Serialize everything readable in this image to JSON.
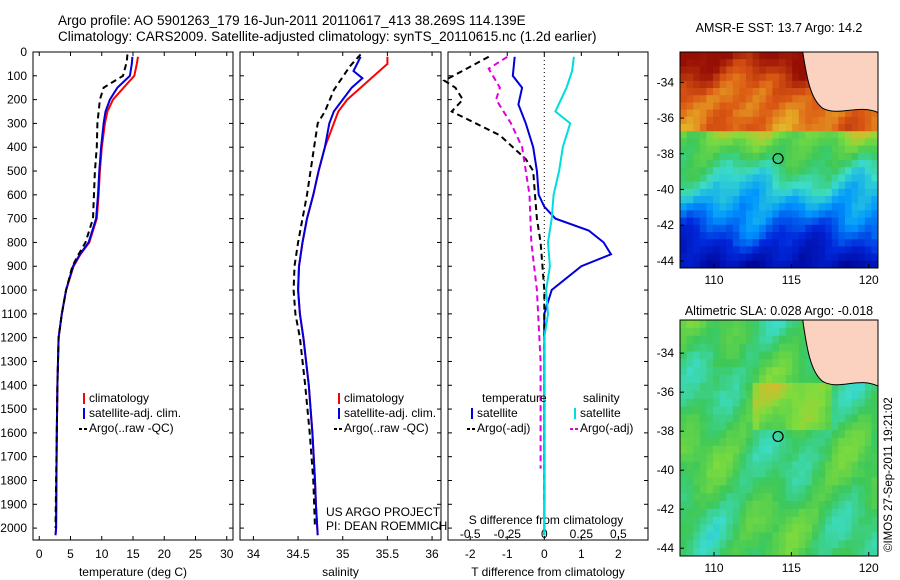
{
  "title": {
    "line1": "Argo profile: AO 5901263_179 16-Jun-2011 20110617_413 38.269S 114.139E",
    "line2": "Climatology: CARS2009. Satellite-adjusted climatology: synTS_20110615.nc (1.2d earlier)"
  },
  "colors": {
    "climatology": "#ff0000",
    "satellite": "#0000dd",
    "argo": "#000000",
    "sat_salinity": "#00dddd",
    "argo_salinity_adj": "#dd00dd"
  },
  "chart_data": [
    {
      "type": "line",
      "panel": "temperature",
      "xlabel": "temperature (deg C)",
      "ylabel": "",
      "xlim": [
        -1,
        31
      ],
      "ylim": [
        2050,
        0
      ],
      "xticks": [
        "0",
        "5",
        "10",
        "15",
        "20",
        "25",
        "30"
      ],
      "yticks": [
        "0",
        "100",
        "200",
        "300",
        "400",
        "500",
        "600",
        "700",
        "800",
        "900",
        "1000",
        "1100",
        "1200",
        "1300",
        "1400",
        "1500",
        "1600",
        "1700",
        "1800",
        "1900",
        "2000"
      ],
      "legend": [
        "climatology",
        "satellite-adj. clim.",
        "Argo(..raw -QC)"
      ],
      "series": [
        {
          "name": "climatology",
          "color": "#ff0000",
          "dash": "",
          "x": [
            15.8,
            15.6,
            15.2,
            13.5,
            11.8,
            10.9,
            10.5,
            10.0,
            9.7,
            9.5,
            9.2,
            8.0,
            6.6,
            5.5,
            4.3,
            3.6,
            3.1,
            2.9,
            2.8,
            2.75,
            2.7,
            2.6
          ],
          "y": [
            20,
            50,
            100,
            150,
            200,
            250,
            300,
            400,
            500,
            600,
            700,
            800,
            850,
            900,
            1000,
            1100,
            1200,
            1400,
            1600,
            1800,
            2000,
            2030
          ]
        },
        {
          "name": "satellite-adj. clim.",
          "color": "#0000dd",
          "dash": "",
          "x": [
            14.9,
            14.8,
            14.5,
            12.5,
            11.3,
            10.6,
            10.3,
            9.9,
            9.6,
            9.4,
            9.1,
            7.9,
            6.5,
            5.4,
            4.3,
            3.6,
            3.1,
            2.9,
            2.8,
            2.75,
            2.7,
            2.6
          ],
          "y": [
            20,
            50,
            100,
            150,
            200,
            250,
            300,
            400,
            500,
            600,
            700,
            800,
            850,
            900,
            1000,
            1100,
            1200,
            1400,
            1600,
            1800,
            2000,
            2030
          ]
        },
        {
          "name": "Argo(..raw -QC)",
          "color": "#000000",
          "dash": "6,4",
          "x": [
            14.1,
            14.0,
            13.4,
            10.3,
            9.7,
            9.3,
            9.2,
            8.9,
            8.6,
            7.4,
            6.3,
            5.3,
            4.3,
            3.6,
            3.1,
            2.9,
            2.8,
            2.7,
            2.6
          ],
          "y": [
            10,
            40,
            100,
            150,
            200,
            300,
            400,
            500,
            700,
            800,
            850,
            900,
            1000,
            1100,
            1200,
            1400,
            1600,
            1800,
            2000
          ]
        }
      ]
    },
    {
      "type": "line",
      "panel": "salinity",
      "xlabel": "salinity",
      "xlim": [
        33.85,
        36.1
      ],
      "ylim": [
        2050,
        0
      ],
      "xticks": [
        "34",
        "34.5",
        "35",
        "35.5",
        "36"
      ],
      "legend": [
        "climatology",
        "satellite-adj. clim.",
        "Argo(..raw -QC)"
      ],
      "annotations": [
        "US ARGO PROJECT",
        "PI: DEAN ROEMMICH"
      ],
      "series": [
        {
          "name": "climatology",
          "color": "#ff0000",
          "dash": "",
          "x": [
            35.5,
            35.5,
            35.35,
            35.2,
            35.05,
            34.95,
            34.9,
            34.8,
            34.73,
            34.67,
            34.6,
            34.55,
            34.51,
            34.5,
            34.52,
            34.56,
            34.62,
            34.66,
            34.69,
            34.7,
            34.72
          ],
          "y": [
            20,
            50,
            100,
            150,
            200,
            250,
            300,
            400,
            500,
            600,
            700,
            800,
            900,
            1000,
            1100,
            1200,
            1400,
            1600,
            1800,
            1900,
            2030
          ]
        },
        {
          "name": "satellite-adj. clim.",
          "color": "#0000dd",
          "dash": "",
          "x": [
            35.2,
            35.12,
            35.22,
            35.1,
            35.0,
            34.9,
            34.85,
            34.8,
            34.73,
            34.67,
            34.6,
            34.55,
            34.51,
            34.5,
            34.52,
            34.56,
            34.62,
            34.66,
            34.69,
            34.7,
            34.72
          ],
          "y": [
            20,
            80,
            110,
            150,
            200,
            250,
            300,
            400,
            500,
            600,
            700,
            800,
            900,
            1000,
            1100,
            1200,
            1400,
            1600,
            1800,
            1900,
            2030
          ]
        },
        {
          "name": "Argo(..raw -QC)",
          "color": "#000000",
          "dash": "6,4",
          "x": [
            35.2,
            35.08,
            34.9,
            34.8,
            34.72,
            34.68,
            34.6,
            34.55,
            34.5,
            34.46,
            34.45,
            34.47,
            34.52,
            34.58,
            34.63,
            34.67,
            34.69
          ],
          "y": [
            10,
            60,
            160,
            250,
            300,
            400,
            600,
            700,
            800,
            900,
            1000,
            1100,
            1200,
            1400,
            1600,
            1800,
            2000
          ]
        }
      ]
    },
    {
      "type": "line",
      "panel": "difference",
      "xlabel": "T difference from climatology",
      "xlabel2": "S difference from climatology",
      "xlim": [
        -2.6,
        2.8
      ],
      "ylim": [
        2050,
        0
      ],
      "xticks": [
        "-2",
        "-1",
        "0",
        "1",
        "2"
      ],
      "xticks2": [
        "-0.5",
        "-0.25",
        "0",
        "0.25",
        "0.5"
      ],
      "legend": {
        "temperature": [
          "temperature",
          "satellite",
          "Argo(-adj)"
        ],
        "salinity": [
          "salinity",
          "satellite",
          "Argo(-adj)"
        ]
      },
      "series": [
        {
          "name": "satellite",
          "color": "#0000dd",
          "dash": "",
          "x": [
            -0.8,
            -0.85,
            -0.6,
            -0.7,
            -0.5,
            -0.3,
            -0.2,
            -0.15,
            0,
            0.3,
            1.2,
            1.6,
            1.8,
            1.0,
            0.2,
            0,
            0,
            0,
            0
          ],
          "y": [
            20,
            100,
            150,
            220,
            300,
            400,
            500,
            600,
            650,
            700,
            750,
            800,
            850,
            900,
            1000,
            1100,
            1300,
            1600,
            2030
          ]
        },
        {
          "name": "Argo(-adj)",
          "color": "#000000",
          "dash": "6,4",
          "x": [
            -1.5,
            -2.7,
            -2.4,
            -2.2,
            -2.5,
            -1.2,
            -0.5,
            -0.3,
            -0.25,
            -0.2,
            -0.1,
            0,
            0
          ],
          "y": [
            20,
            120,
            150,
            200,
            250,
            350,
            450,
            500,
            600,
            700,
            800,
            1000,
            1900
          ]
        },
        {
          "name": "sat-salinity",
          "color": "#00dddd",
          "dash": "",
          "x": [
            0.8,
            0.75,
            0.6,
            0.3,
            0.7,
            0.5,
            0.4,
            0.25,
            0.2,
            0.1,
            0.15,
            0.05,
            0.1,
            0,
            0
          ],
          "y": [
            20,
            80,
            150,
            250,
            300,
            400,
            500,
            600,
            700,
            800,
            900,
            1000,
            1100,
            1200,
            2030
          ]
        },
        {
          "name": "argo-salinity-adj",
          "color": "#dd00dd",
          "dash": "6,4",
          "x": [
            -1.0,
            -1.5,
            -1.2,
            -1.3,
            -0.9,
            -0.6,
            -0.5,
            -0.4,
            -0.35,
            -0.2,
            -0.1,
            -0.1,
            -0.1
          ],
          "y": [
            20,
            70,
            150,
            200,
            300,
            400,
            500,
            600,
            800,
            1000,
            1300,
            1600,
            1750
          ]
        }
      ]
    },
    {
      "type": "heatmap",
      "panel": "sst-map",
      "title": "AMSR-E SST: 13.7 Argo: 14.2",
      "xticks": [
        "110",
        "115",
        "120"
      ],
      "yticks": [
        "-34",
        "-36",
        "-38",
        "-40",
        "-42",
        "-44"
      ],
      "xlim": [
        107.8,
        120.6
      ],
      "ylim": [
        -44.4,
        -32.3
      ],
      "argo_position": {
        "lon": 114.14,
        "lat": -38.27
      }
    },
    {
      "type": "heatmap",
      "panel": "sla-map",
      "title": "Altimetric SLA: 0.028 Argo: -0.018",
      "xticks": [
        "110",
        "115",
        "120"
      ],
      "yticks": [
        "-34",
        "-36",
        "-38",
        "-40",
        "-42",
        "-44"
      ],
      "xlim": [
        107.8,
        120.6
      ],
      "ylim": [
        -44.4,
        -32.3
      ],
      "argo_position": {
        "lon": 114.14,
        "lat": -38.27
      }
    }
  ],
  "credit": "©IMOS 27-Sep-2011 19:21:02"
}
